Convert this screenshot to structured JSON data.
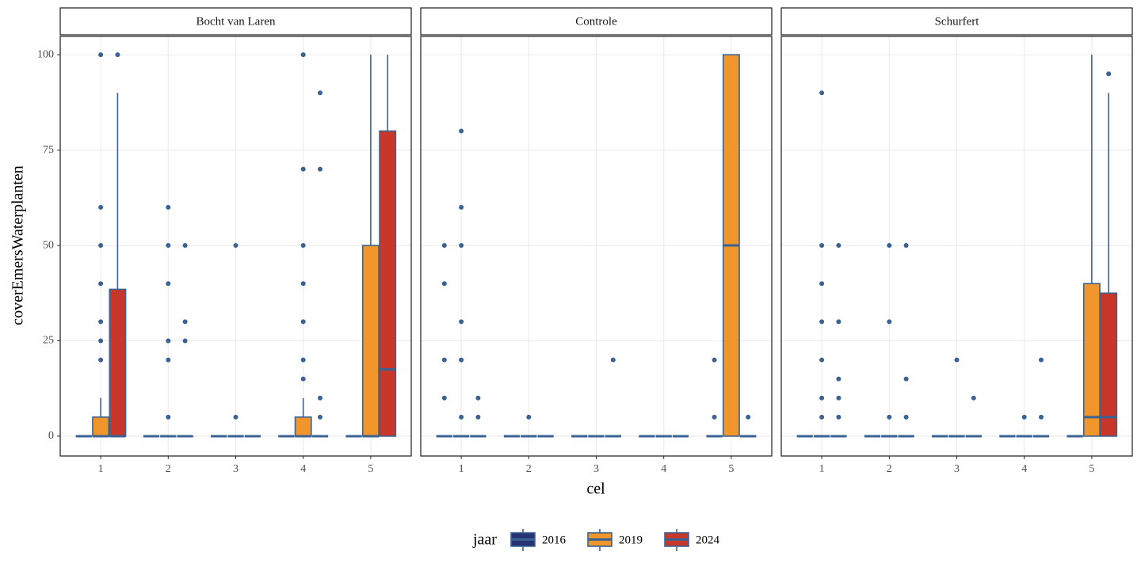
{
  "x_label": "cel",
  "y_label": "coverEmersWaterplanten",
  "legend_title": "jaar",
  "chart_data": [
    {
      "type": "box",
      "title": "Bocht van Laren",
      "categories": [
        "1",
        "2",
        "3",
        "4",
        "5"
      ],
      "ylim": [
        -5.2,
        104.8
      ],
      "yticks": [
        0,
        25,
        50,
        75,
        100
      ],
      "grid": true,
      "outline_color": "#3a6394",
      "series": [
        {
          "name": "2016",
          "color": "#283375",
          "min": [
            0,
            0,
            0,
            0,
            0
          ],
          "q1": [
            0,
            0,
            0,
            0,
            0
          ],
          "median": [
            0,
            0,
            0,
            0,
            0
          ],
          "q3": [
            0,
            0,
            0,
            0,
            0
          ],
          "max": [
            0,
            0,
            0,
            0,
            0
          ],
          "outliers": [
            [],
            [],
            [],
            [],
            []
          ]
        },
        {
          "name": "2019",
          "color": "#f0962a",
          "min": [
            0,
            0,
            0,
            0,
            0
          ],
          "q1": [
            0,
            0,
            0,
            0,
            0
          ],
          "median": [
            0,
            0,
            0,
            0,
            0
          ],
          "q3": [
            5,
            0,
            0,
            5,
            50
          ],
          "max": [
            10,
            0,
            0,
            10,
            100
          ],
          "outliers": [
            [
              20,
              25,
              30,
              40,
              50,
              60,
              100
            ],
            [
              5,
              20,
              25,
              40,
              50,
              60
            ],
            [
              5,
              50
            ],
            [
              15,
              20,
              30,
              40,
              50,
              70,
              100
            ],
            []
          ]
        },
        {
          "name": "2024",
          "color": "#c8372a",
          "min": [
            0,
            0,
            0,
            0,
            0
          ],
          "q1": [
            0,
            0,
            0,
            0,
            0
          ],
          "median": [
            0,
            0,
            0,
            0,
            17.5
          ],
          "q3": [
            38.5,
            0,
            0,
            0,
            80
          ],
          "max": [
            90,
            0,
            0,
            0,
            100
          ],
          "outliers": [
            [
              100
            ],
            [
              25,
              30,
              50
            ],
            [],
            [
              5,
              10,
              70,
              90
            ],
            []
          ]
        }
      ]
    },
    {
      "type": "box",
      "title": "Controle",
      "categories": [
        "1",
        "2",
        "3",
        "4",
        "5"
      ],
      "ylim": [
        -5.2,
        104.8
      ],
      "yticks": [
        0,
        25,
        50,
        75,
        100
      ],
      "grid": true,
      "outline_color": "#3a6394",
      "series": [
        {
          "name": "2016",
          "color": "#283375",
          "min": [
            0,
            0,
            0,
            0,
            0
          ],
          "q1": [
            0,
            0,
            0,
            0,
            0
          ],
          "median": [
            0,
            0,
            0,
            0,
            0
          ],
          "q3": [
            0,
            0,
            0,
            0,
            0
          ],
          "max": [
            0,
            0,
            0,
            0,
            0
          ],
          "outliers": [
            [
              10,
              20,
              40,
              50
            ],
            [],
            [],
            [],
            [
              5,
              20
            ]
          ]
        },
        {
          "name": "2019",
          "color": "#f0962a",
          "min": [
            0,
            0,
            0,
            0,
            0
          ],
          "q1": [
            0,
            0,
            0,
            0,
            0
          ],
          "median": [
            0,
            0,
            0,
            0,
            50
          ],
          "q3": [
            0,
            0,
            0,
            0,
            100
          ],
          "max": [
            0,
            0,
            0,
            0,
            100
          ],
          "outliers": [
            [
              5,
              20,
              30,
              50,
              60,
              80
            ],
            [
              5
            ],
            [],
            [],
            []
          ]
        },
        {
          "name": "2024",
          "color": "#c8372a",
          "min": [
            0,
            0,
            0,
            0,
            0
          ],
          "q1": [
            0,
            0,
            0,
            0,
            0
          ],
          "median": [
            0,
            0,
            0,
            0,
            0
          ],
          "q3": [
            0,
            0,
            0,
            0,
            0
          ],
          "max": [
            0,
            0,
            0,
            0,
            0
          ],
          "outliers": [
            [
              5,
              10
            ],
            [],
            [
              20
            ],
            [],
            [
              5
            ]
          ]
        }
      ]
    },
    {
      "type": "box",
      "title": "Schurfert",
      "categories": [
        "1",
        "2",
        "3",
        "4",
        "5"
      ],
      "ylim": [
        -5.2,
        104.8
      ],
      "yticks": [
        0,
        25,
        50,
        75,
        100
      ],
      "grid": true,
      "outline_color": "#3a6394",
      "series": [
        {
          "name": "2016",
          "color": "#283375",
          "min": [
            0,
            0,
            0,
            0,
            0
          ],
          "q1": [
            0,
            0,
            0,
            0,
            0
          ],
          "median": [
            0,
            0,
            0,
            0,
            0
          ],
          "q3": [
            0,
            0,
            0,
            0,
            0
          ],
          "max": [
            0,
            0,
            0,
            0,
            0
          ],
          "outliers": [
            [],
            [],
            [],
            [],
            []
          ]
        },
        {
          "name": "2019",
          "color": "#f0962a",
          "min": [
            0,
            0,
            0,
            0,
            0
          ],
          "q1": [
            0,
            0,
            0,
            0,
            0
          ],
          "median": [
            0,
            0,
            0,
            0,
            5
          ],
          "q3": [
            0,
            0,
            0,
            0,
            40
          ],
          "max": [
            0,
            0,
            0,
            0,
            100
          ],
          "outliers": [
            [
              5,
              10,
              20,
              30,
              40,
              50,
              90
            ],
            [
              5,
              30,
              50
            ],
            [
              20
            ],
            [
              5
            ],
            []
          ]
        },
        {
          "name": "2024",
          "color": "#c8372a",
          "min": [
            0,
            0,
            0,
            0,
            0
          ],
          "q1": [
            0,
            0,
            0,
            0,
            0
          ],
          "median": [
            0,
            0,
            0,
            0,
            5
          ],
          "q3": [
            0,
            0,
            0,
            0,
            37.5
          ],
          "max": [
            0,
            0,
            0,
            0,
            90
          ],
          "outliers": [
            [
              5,
              10,
              15,
              30,
              50
            ],
            [
              5,
              15,
              50
            ],
            [
              10
            ],
            [
              5,
              20
            ],
            [
              95
            ]
          ]
        }
      ]
    }
  ]
}
